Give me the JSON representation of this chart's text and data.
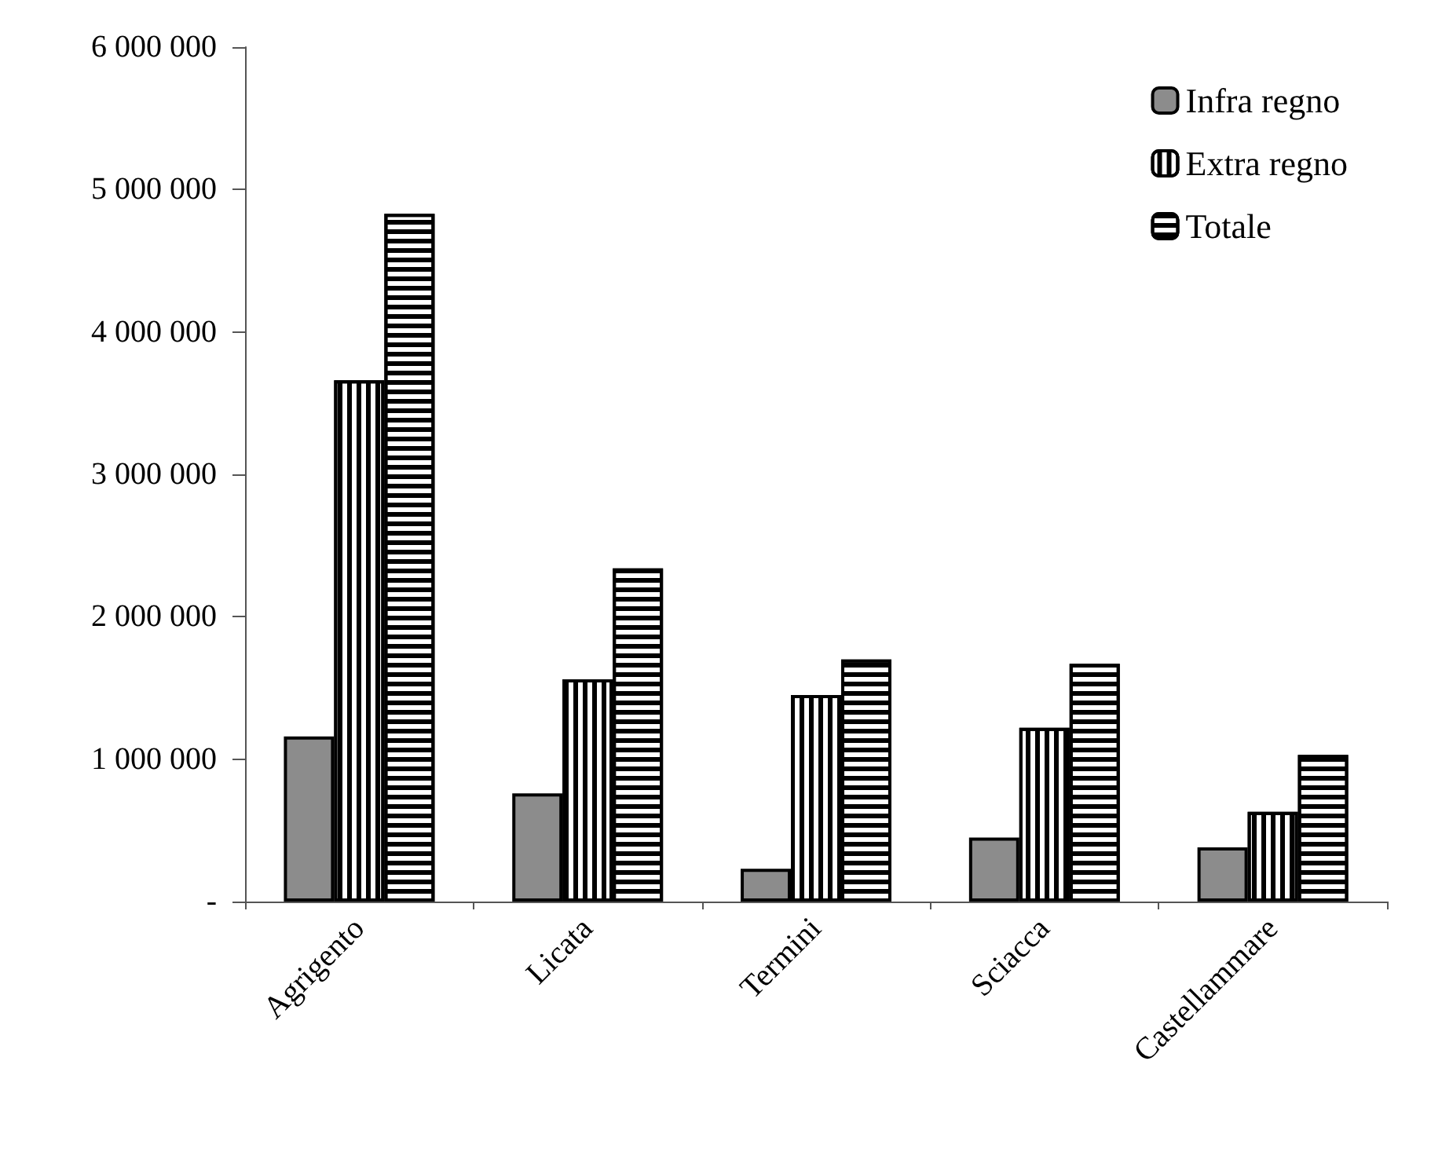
{
  "chart_data": {
    "type": "bar",
    "categories": [
      "Agrigento",
      "Licata",
      "Termini",
      "Sciacca",
      "Castellammare"
    ],
    "series": [
      {
        "name": "Infra regno",
        "color": "#8c8c8c",
        "values": [
          1160000,
          760000,
          230000,
          450000,
          380000
        ]
      },
      {
        "name": "Extra regno",
        "color": "#ffffff",
        "values": [
          3660000,
          1560000,
          1450000,
          1220000,
          630000
        ]
      },
      {
        "name": "Totale",
        "color": "#ffffff",
        "values": [
          4830000,
          2340000,
          1700000,
          1670000,
          1030000
        ]
      }
    ],
    "ylim": [
      0,
      6000000
    ],
    "yticks": [
      {
        "value": 0,
        "label": "-"
      },
      {
        "value": 1000000,
        "label": "1 000 000"
      },
      {
        "value": 2000000,
        "label": "2 000 000"
      },
      {
        "value": 3000000,
        "label": "3 000 000"
      },
      {
        "value": 4000000,
        "label": "4 000 000"
      },
      {
        "value": 5000000,
        "label": "5 000 000"
      },
      {
        "value": 6000000,
        "label": "6 000 000"
      }
    ],
    "grid": false,
    "legend": "top right"
  }
}
